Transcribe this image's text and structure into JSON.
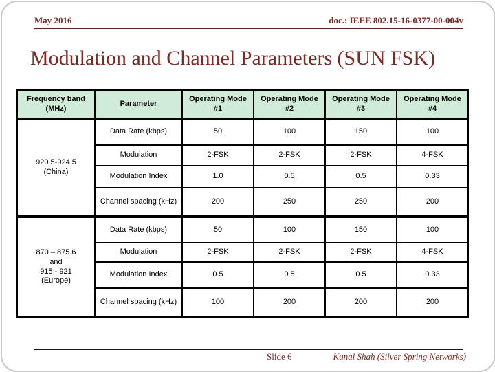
{
  "slide": {
    "header": {
      "date": "May 2016",
      "doc_number": "doc.: IEEE 802.15-16-0377-00-004v"
    },
    "title": "Modulation and Channel Parameters (SUN FSK)",
    "footer": {
      "slide_number": "Slide 6",
      "author": "Kunal Shah (Silver Spring Networks)"
    }
  },
  "colors": {
    "accent_text": "#7e2a23",
    "table_header_bg": "#d0ecd8",
    "table_border": "#000000"
  },
  "table": {
    "columns": {
      "band": "Frequency band (MHz)",
      "parameter": "Parameter",
      "mode1": "Operating Mode #1",
      "mode2": "Operating Mode #2",
      "mode3": "Operating Mode #3",
      "mode4": "Operating Mode #4"
    },
    "sections": [
      {
        "band": "920.5-924.5\n(China)",
        "rows": [
          {
            "parameter": "Data Rate (kbps)",
            "values": [
              "50",
              "100",
              "150",
              "100"
            ]
          },
          {
            "parameter": "Modulation",
            "values": [
              "2-FSK",
              "2-FSK",
              "2-FSK",
              "4-FSK"
            ]
          },
          {
            "parameter": "Modulation Index",
            "values": [
              "1.0",
              "0.5",
              "0.5",
              "0.33"
            ]
          },
          {
            "parameter": "Channel spacing (kHz)",
            "values": [
              "200",
              "250",
              "250",
              "200"
            ]
          }
        ]
      },
      {
        "band": "870 – 875.6\nand\n915 - 921\n(Europe)",
        "rows": [
          {
            "parameter": "Data Rate (kbps)",
            "values": [
              "50",
              "100",
              "150",
              "100"
            ]
          },
          {
            "parameter": "Modulation",
            "values": [
              "2-FSK",
              "2-FSK",
              "2-FSK",
              "4-FSK"
            ]
          },
          {
            "parameter": "Modulation Index",
            "values": [
              "0.5",
              "0.5",
              "0.5",
              "0.33"
            ]
          },
          {
            "parameter": "Channel spacing (kHz)",
            "values": [
              "100",
              "200",
              "200",
              "200"
            ]
          }
        ]
      }
    ]
  }
}
